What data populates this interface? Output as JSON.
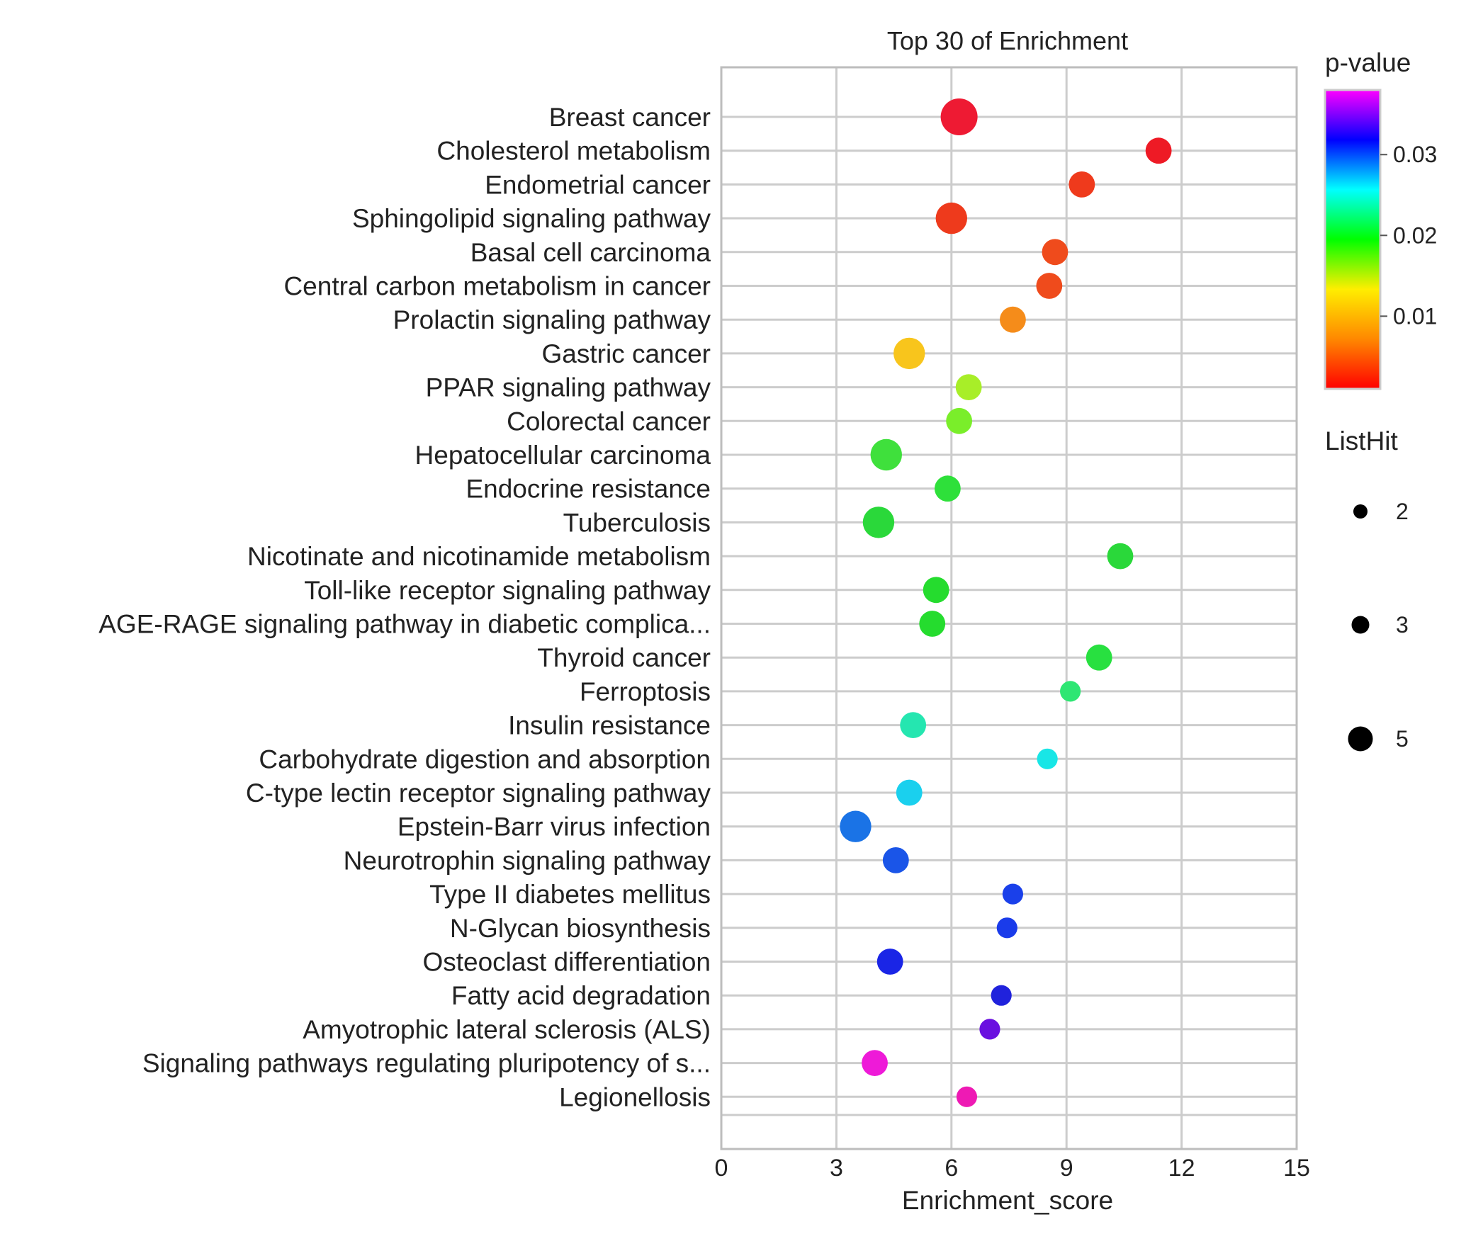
{
  "chart_data": {
    "type": "scatter",
    "title": "Top 30 of  Enrichment",
    "xlabel": "Enrichment_score",
    "ylabel": "",
    "xlim": [
      0,
      15
    ],
    "xticks": [
      "0",
      "3",
      "6",
      "9",
      "12",
      "15"
    ],
    "grid": true,
    "color_legend": {
      "title": "p-value",
      "range": [
        0.001,
        0.038
      ],
      "ticks": [
        "0.01",
        "0.02",
        "0.03"
      ],
      "tick_values": [
        0.01,
        0.02,
        0.03
      ],
      "colormap": [
        "#ff0000",
        "#ff8800",
        "#ffee00",
        "#00ff00",
        "#00ffff",
        "#0000ff",
        "#ff00ff"
      ]
    },
    "size_legend": {
      "title": "ListHit",
      "entries": [
        "2",
        "3",
        "5"
      ],
      "values": [
        2,
        3,
        5
      ]
    },
    "categories": [
      "Breast cancer",
      "Cholesterol metabolism",
      "Endometrial cancer",
      "Sphingolipid signaling pathway",
      "Basal cell carcinoma",
      "Central carbon metabolism in cancer",
      "Prolactin signaling pathway",
      "Gastric cancer",
      "PPAR signaling pathway",
      "Colorectal cancer",
      "Hepatocellular carcinoma",
      "Endocrine resistance",
      "Tuberculosis",
      "Nicotinate and nicotinamide metabolism",
      "Toll-like receptor signaling pathway",
      "AGE-RAGE signaling pathway in diabetic complica...",
      "Thyroid cancer",
      "Ferroptosis",
      "Insulin resistance",
      "Carbohydrate digestion and absorption",
      "C-type lectin receptor signaling pathway",
      "Epstein-Barr virus infection",
      "Neurotrophin signaling pathway",
      "Type II diabetes mellitus",
      "N-Glycan biosynthesis",
      "Osteoclast differentiation",
      "Fatty acid degradation",
      "Amyotrophic lateral sclerosis (ALS)",
      "Signaling pathways regulating pluripotency of s...",
      "Legionellosis"
    ],
    "points": [
      {
        "x": 6.2,
        "size": 5,
        "color": "#ee1a33"
      },
      {
        "x": 11.4,
        "size": 3,
        "color": "#ee1a25"
      },
      {
        "x": 9.4,
        "size": 3,
        "color": "#ef3a1c"
      },
      {
        "x": 6.0,
        "size": 4,
        "color": "#ee3a1c"
      },
      {
        "x": 8.7,
        "size": 3,
        "color": "#ef4b1c"
      },
      {
        "x": 8.55,
        "size": 3,
        "color": "#ef4b1c"
      },
      {
        "x": 7.6,
        "size": 3,
        "color": "#f58c1a"
      },
      {
        "x": 4.9,
        "size": 4,
        "color": "#f8c51c"
      },
      {
        "x": 6.45,
        "size": 3,
        "color": "#a8ee28"
      },
      {
        "x": 6.2,
        "size": 3,
        "color": "#7aee2a"
      },
      {
        "x": 4.3,
        "size": 4,
        "color": "#3fe03c"
      },
      {
        "x": 5.9,
        "size": 3,
        "color": "#2ee03a"
      },
      {
        "x": 4.1,
        "size": 4,
        "color": "#2ad83a"
      },
      {
        "x": 10.4,
        "size": 3,
        "color": "#2ad83a"
      },
      {
        "x": 5.6,
        "size": 3,
        "color": "#25dc2e"
      },
      {
        "x": 5.5,
        "size": 3,
        "color": "#25dc2e"
      },
      {
        "x": 9.85,
        "size": 3,
        "color": "#28e040"
      },
      {
        "x": 9.1,
        "size": 2,
        "color": "#2ee673"
      },
      {
        "x": 5.0,
        "size": 3,
        "color": "#25e6b0"
      },
      {
        "x": 8.5,
        "size": 2,
        "color": "#18e6e6"
      },
      {
        "x": 4.9,
        "size": 3,
        "color": "#1ad0ee"
      },
      {
        "x": 3.5,
        "size": 4,
        "color": "#1a73e6"
      },
      {
        "x": 4.55,
        "size": 3,
        "color": "#1a55e8"
      },
      {
        "x": 7.6,
        "size": 2,
        "color": "#1a40ea"
      },
      {
        "x": 7.45,
        "size": 2,
        "color": "#1a3bea"
      },
      {
        "x": 4.4,
        "size": 3,
        "color": "#1a25e6"
      },
      {
        "x": 7.3,
        "size": 2,
        "color": "#2022dc"
      },
      {
        "x": 7.0,
        "size": 2,
        "color": "#6a10e0"
      },
      {
        "x": 4.0,
        "size": 3,
        "color": "#ee1ad8"
      },
      {
        "x": 6.4,
        "size": 2,
        "color": "#ee1ab4"
      }
    ]
  }
}
